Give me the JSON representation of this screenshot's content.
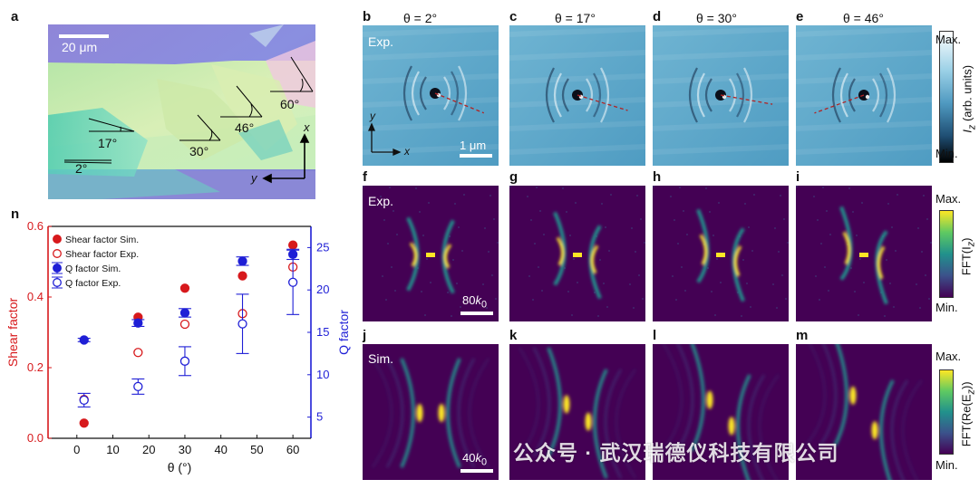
{
  "labels": {
    "a": "a",
    "b": "b",
    "c": "c",
    "d": "d",
    "e": "e",
    "f": "f",
    "g": "g",
    "h": "h",
    "i": "i",
    "j": "j",
    "k": "k",
    "l": "l",
    "m": "m",
    "n": "n"
  },
  "thetas": [
    "θ = 2°",
    "θ = 17°",
    "θ = 30°",
    "θ = 46°"
  ],
  "panel_a": {
    "scale": "20 μm",
    "angles": [
      "2°",
      "17°",
      "30°",
      "46°",
      "60°"
    ],
    "axis_x": "x",
    "axis_y": "y"
  },
  "row_b": {
    "tag": "Exp.",
    "scale": "1 μm",
    "axis_x": "x",
    "axis_y": "y",
    "cb_max": "Max.",
    "cb_min": "Min.",
    "cb_title_pre": "I",
    "cb_title_sub": "z",
    "cb_title_post": " (arb. units)"
  },
  "row_f": {
    "tag": "Exp.",
    "scale_pre": "80",
    "scale_k": "k",
    "scale_sub": "0",
    "cb_max": "Max.",
    "cb_min": "Min.",
    "cb_title_pre": "FFT(I",
    "cb_title_sub": "z",
    "cb_title_post": ")"
  },
  "row_j": {
    "tag": "Sim.",
    "scale_pre": "40",
    "scale_k": "k",
    "scale_sub": "0",
    "cb_max": "Max.",
    "cb_min": "Min.",
    "cb_title_pre": "FFT(Re(E",
    "cb_title_sub": "z",
    "cb_title_post": "))"
  },
  "watermark": "公众号 · 武汉瑞德仪科技有限公司",
  "colors": {
    "shear": "#d7191c",
    "q": "#1f1fd6",
    "viridis_dark": "#440154",
    "field_bg": "#5aa6c8"
  },
  "chart_data": {
    "type": "scatter",
    "xlabel": "θ (°)",
    "ylabel_left": "Shear factor",
    "ylabel_right": "Q factor",
    "xlim": [
      -8,
      65
    ],
    "ylim_left": [
      0.0,
      0.6
    ],
    "ylim_right": [
      2.5,
      27.5
    ],
    "x_ticks": [
      0,
      10,
      20,
      30,
      40,
      50,
      60
    ],
    "y_ticks_left": [
      0.0,
      0.2,
      0.4,
      0.6
    ],
    "y_ticks_right": [
      5,
      10,
      15,
      20,
      25
    ],
    "y_tick_labels_left": [
      "0.0",
      "0.2",
      "0.4",
      "0.6"
    ],
    "legend_position": "top-left",
    "series": [
      {
        "name": "Shear factor Sim.",
        "axis": "left",
        "marker": "filled",
        "color": "#d7191c",
        "x": [
          2,
          17,
          30,
          46,
          60
        ],
        "y": [
          0.043,
          0.343,
          0.425,
          0.46,
          0.547
        ]
      },
      {
        "name": "Shear factor Exp.",
        "axis": "left",
        "marker": "open",
        "color": "#d7191c",
        "x": [
          2,
          17,
          30,
          46,
          60
        ],
        "y": [
          0.11,
          0.243,
          0.323,
          0.353,
          0.485
        ]
      },
      {
        "name": "Q factor Sim.",
        "axis": "right",
        "marker": "filled",
        "color": "#1f1fd6",
        "x": [
          2,
          17,
          30,
          46,
          60
        ],
        "y": [
          14.1,
          16.1,
          17.3,
          23.4,
          24.2
        ],
        "err": [
          0.2,
          0.4,
          0.5,
          0.5,
          0.6
        ]
      },
      {
        "name": "Q factor Exp.",
        "axis": "right",
        "marker": "open",
        "color": "#1f1fd6",
        "x": [
          2,
          17,
          30,
          46,
          60
        ],
        "y": [
          7.0,
          8.6,
          11.6,
          16.0,
          20.9
        ],
        "err": [
          0.8,
          0.9,
          1.7,
          3.5,
          3.8
        ]
      }
    ]
  }
}
